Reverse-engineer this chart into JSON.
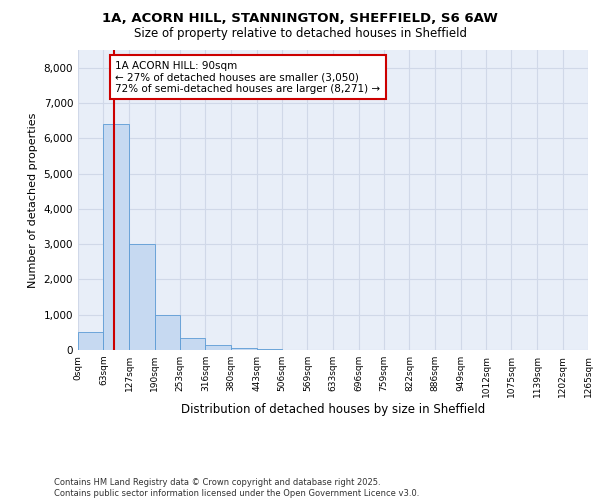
{
  "title_line1": "1A, ACORN HILL, STANNINGTON, SHEFFIELD, S6 6AW",
  "title_line2": "Size of property relative to detached houses in Sheffield",
  "xlabel": "Distribution of detached houses by size in Sheffield",
  "ylabel": "Number of detached properties",
  "bin_labels": [
    "0sqm",
    "63sqm",
    "127sqm",
    "190sqm",
    "253sqm",
    "316sqm",
    "380sqm",
    "443sqm",
    "506sqm",
    "569sqm",
    "633sqm",
    "696sqm",
    "759sqm",
    "822sqm",
    "886sqm",
    "949sqm",
    "1012sqm",
    "1075sqm",
    "1139sqm",
    "1202sqm",
    "1265sqm"
  ],
  "bin_edges": [
    0,
    63,
    127,
    190,
    253,
    316,
    380,
    443,
    506,
    569,
    633,
    696,
    759,
    822,
    886,
    949,
    1012,
    1075,
    1139,
    1202,
    1265
  ],
  "bar_heights": [
    500,
    6400,
    3000,
    1000,
    350,
    150,
    60,
    20,
    5,
    2,
    1,
    0,
    0,
    0,
    0,
    0,
    0,
    0,
    0,
    0
  ],
  "bar_color": "#c6d9f1",
  "bar_edge_color": "#5b9bd5",
  "property_sqm": 90,
  "property_line_color": "#cc0000",
  "annotation_text": "1A ACORN HILL: 90sqm\n← 27% of detached houses are smaller (3,050)\n72% of semi-detached houses are larger (8,271) →",
  "annotation_box_color": "#cc0000",
  "ylim": [
    0,
    8500
  ],
  "yticks": [
    0,
    1000,
    2000,
    3000,
    4000,
    5000,
    6000,
    7000,
    8000
  ],
  "grid_color": "#d0d8e8",
  "background_color": "#e8eef8",
  "footer_line1": "Contains HM Land Registry data © Crown copyright and database right 2025.",
  "footer_line2": "Contains public sector information licensed under the Open Government Licence v3.0."
}
